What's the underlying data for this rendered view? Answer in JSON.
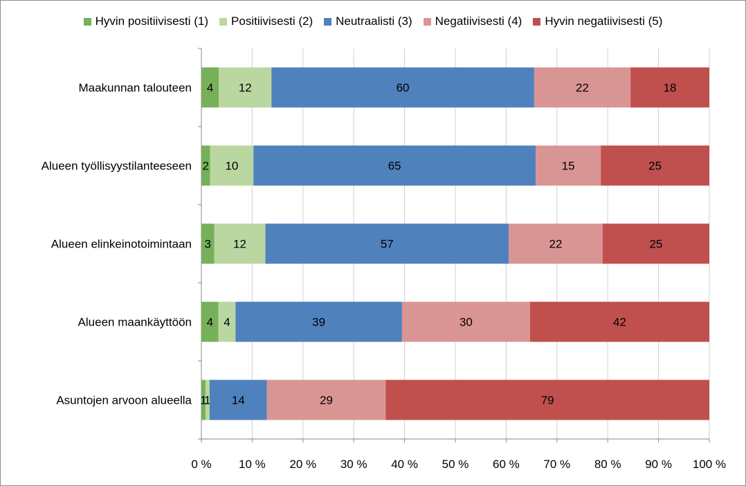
{
  "chart_data": {
    "type": "bar",
    "orientation": "horizontal",
    "stacked": "percent",
    "categories": [
      "Maakunnan talouteen",
      "Alueen työllisyystilanteeseen",
      "Alueen elinkeinotoimintaan",
      "Alueen maankäyttöön",
      "Asuntojen arvoon alueella"
    ],
    "series": [
      {
        "name": "Hyvin positiivisesti (1)",
        "color": "#77B05A",
        "values": [
          4,
          2,
          3,
          4,
          1
        ]
      },
      {
        "name": "Positiivisesti (2)",
        "color": "#BAD7A1",
        "values": [
          12,
          10,
          12,
          4,
          1
        ]
      },
      {
        "name": "Neutraalisti (3)",
        "color": "#4F81BD",
        "values": [
          60,
          65,
          57,
          39,
          14
        ]
      },
      {
        "name": "Negatiivisesti (4)",
        "color": "#D99594",
        "values": [
          22,
          15,
          22,
          30,
          29
        ]
      },
      {
        "name": "Hyvin negatiivisesti (5)",
        "color": "#C0504D",
        "values": [
          18,
          25,
          25,
          42,
          79
        ]
      }
    ],
    "x_tick_labels": [
      "0 %",
      "10 %",
      "20 %",
      "30 %",
      "40 %",
      "50 %",
      "60 %",
      "70 %",
      "80 %",
      "90 %",
      "100 %"
    ],
    "xlim": [
      0,
      100
    ],
    "legend_position": "top",
    "grid": "vertical",
    "data_labels": true
  }
}
